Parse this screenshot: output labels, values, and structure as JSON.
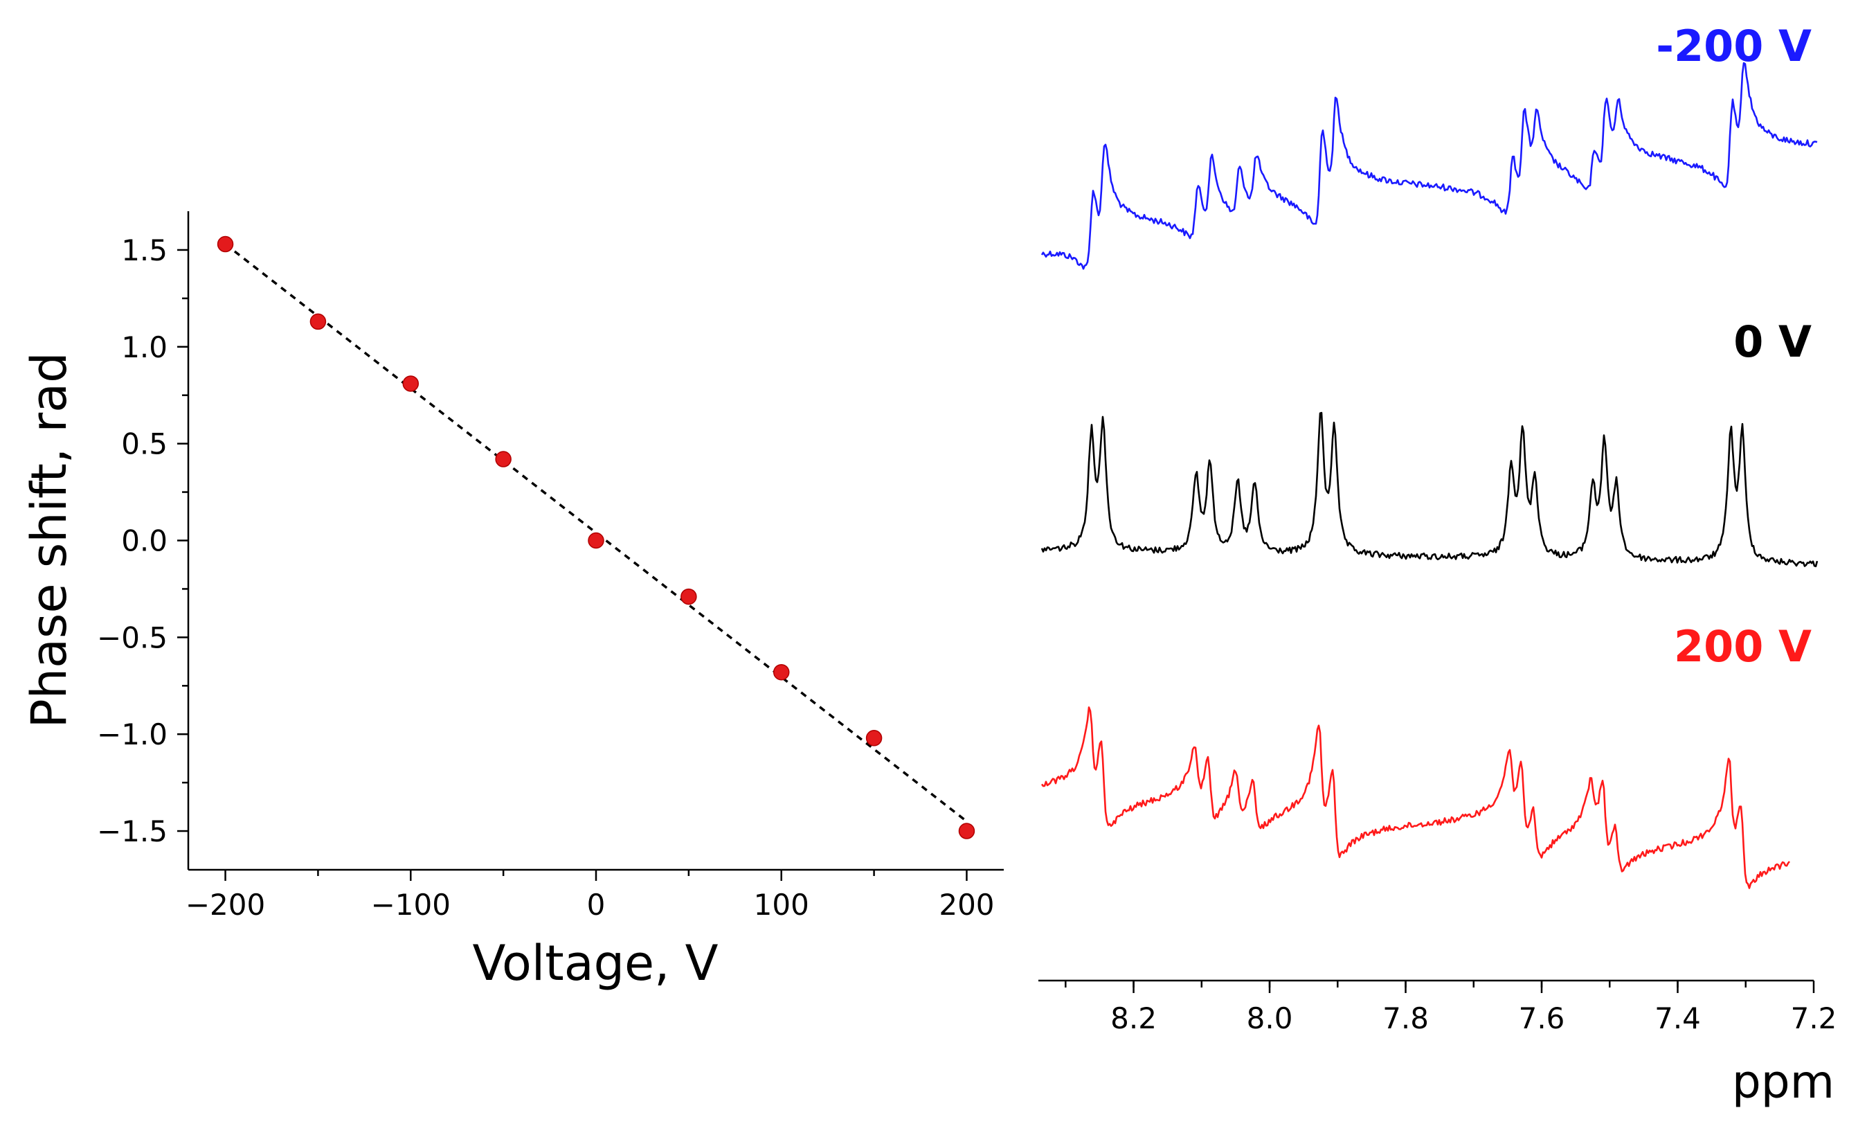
{
  "chart_data": [
    {
      "type": "scatter",
      "xlabel": "Voltage, V",
      "ylabel": "Phase shift, rad",
      "xlim": [
        -220,
        220
      ],
      "ylim": [
        -1.7,
        1.7
      ],
      "xticks": [
        -200,
        -100,
        0,
        100,
        200
      ],
      "xtick_labels": [
        "−200",
        "−100",
        "0",
        "100",
        "200"
      ],
      "yticks": [
        1.5,
        1.0,
        0.5,
        0.0,
        -0.5,
        -1.0,
        -1.5
      ],
      "ytick_labels": [
        "1.5",
        "1.0",
        "0.5",
        "0.0",
        "−0.5",
        "−1.0",
        "−1.5"
      ],
      "x": [
        -200,
        -150,
        -100,
        -50,
        0,
        50,
        100,
        150,
        200
      ],
      "y": [
        1.53,
        1.13,
        0.81,
        0.42,
        0.0,
        -0.29,
        -0.68,
        -1.02,
        -1.5
      ],
      "fit_line": {
        "x": [
          -200,
          200
        ],
        "y": [
          1.53,
          -1.45
        ],
        "style": "dashed"
      },
      "point_color": "#e31a1c",
      "fit_color": "#000000"
    },
    {
      "type": "line",
      "xlabel": "ppm",
      "xlim": [
        8.34,
        7.2
      ],
      "xticks": [
        8.2,
        8.0,
        7.8,
        7.6,
        7.4,
        7.2
      ],
      "xtick_labels": [
        "8.2",
        "8.0",
        "7.8",
        "7.6",
        "7.4",
        "7.2"
      ],
      "series": [
        {
          "name": "-200 V",
          "color": "#1a1aff",
          "lineshape": "dispersive-negative"
        },
        {
          "name": "0 V",
          "color": "#000000",
          "lineshape": "absorptive"
        },
        {
          "name": "200 V",
          "color": "#ff1a1a",
          "lineshape": "dispersive-positive"
        }
      ],
      "peaks_ppm": [
        8.26,
        8.24,
        8.11,
        8.09,
        8.05,
        8.02,
        7.92,
        7.905,
        7.65,
        7.63,
        7.61,
        7.525,
        7.51,
        7.49,
        7.32,
        7.305
      ]
    }
  ]
}
